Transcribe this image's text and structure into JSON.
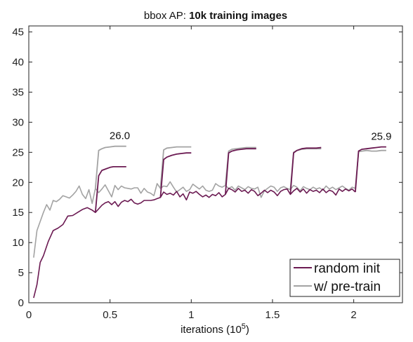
{
  "chart_data": {
    "type": "line",
    "title_prefix": "bbox AP: ",
    "title_bold": "10k training images",
    "xlabel": "iterations (10",
    "xlabel_exp": "5",
    "xlabel_suffix": ")",
    "xlim": [
      0,
      2.3
    ],
    "ylim": [
      0,
      46
    ],
    "xticks": [
      0,
      0.5,
      1,
      1.5,
      2
    ],
    "xtick_labels": [
      "0",
      "0.5",
      "1",
      "1.5",
      "2"
    ],
    "yticks": [
      0,
      5,
      10,
      15,
      20,
      25,
      30,
      35,
      40,
      45
    ],
    "ytick_labels": [
      "0",
      "5",
      "10",
      "15",
      "20",
      "25",
      "30",
      "35",
      "40",
      "45"
    ],
    "grid": false,
    "legend_position": "bottom-right",
    "series": [
      {
        "name": "random init",
        "color": "#6b1a52",
        "main": {
          "x": [
            0.03,
            0.05,
            0.07,
            0.09,
            0.12,
            0.15,
            0.18,
            0.21,
            0.24,
            0.27,
            0.3,
            0.33,
            0.36,
            0.39,
            0.41,
            0.43,
            0.45,
            0.47,
            0.49,
            0.51,
            0.53,
            0.55,
            0.57,
            0.59,
            0.61,
            0.63,
            0.65,
            0.67,
            0.69,
            0.71,
            0.73,
            0.75,
            0.77,
            0.79,
            0.81,
            0.83,
            0.85,
            0.87,
            0.89,
            0.91,
            0.93,
            0.95,
            0.97,
            0.99,
            1.01,
            1.03,
            1.05,
            1.07,
            1.09,
            1.11,
            1.13,
            1.15,
            1.17,
            1.19,
            1.21,
            1.23,
            1.25,
            1.27,
            1.29,
            1.31,
            1.33,
            1.35,
            1.37,
            1.39,
            1.41,
            1.43,
            1.45,
            1.47,
            1.49,
            1.51,
            1.53,
            1.55,
            1.57,
            1.59,
            1.61,
            1.63,
            1.65,
            1.67,
            1.69,
            1.71,
            1.73,
            1.75,
            1.77,
            1.79,
            1.81,
            1.83,
            1.85,
            1.87,
            1.89,
            1.91,
            1.93,
            1.95,
            1.97,
            1.99,
            2.01
          ],
          "y": [
            0.8,
            3.0,
            6.7,
            7.8,
            10.2,
            12.0,
            12.4,
            13.0,
            14.4,
            14.5,
            15.0,
            15.5,
            15.8,
            15.4,
            15.0,
            15.6,
            16.2,
            16.6,
            16.8,
            16.3,
            16.8,
            16.0,
            16.7,
            17.0,
            16.8,
            17.2,
            16.6,
            16.4,
            16.6,
            17.0,
            17.0,
            17.0,
            17.1,
            17.3,
            17.5,
            18.4,
            18.0,
            18.2,
            17.9,
            18.5,
            17.6,
            18.1,
            17.1,
            18.4,
            18.2,
            18.5,
            18.0,
            17.6,
            17.9,
            17.5,
            18.0,
            17.8,
            18.3,
            17.6,
            18.0,
            19.0,
            18.8,
            18.4,
            19.0,
            18.5,
            18.7,
            18.2,
            18.8,
            18.5,
            17.8,
            18.2,
            18.7,
            18.3,
            18.7,
            18.4,
            17.8,
            18.5,
            18.8,
            18.9,
            18.0,
            18.6,
            19.0,
            18.4,
            18.9,
            18.2,
            18.8,
            18.5,
            18.7,
            18.3,
            18.9,
            18.3,
            18.7,
            18.5,
            17.9,
            18.9,
            18.5,
            18.9,
            18.6,
            18.9,
            18.4
          ]
        },
        "branches": [
          {
            "x": [
              0.41,
              0.43,
              0.45,
              0.47,
              0.5,
              0.52,
              0.55,
              0.58,
              0.6
            ],
            "y": [
              15.0,
              21.1,
              22.0,
              22.2,
              22.5,
              22.6,
              22.6,
              22.6,
              22.6
            ]
          },
          {
            "x": [
              0.81,
              0.83,
              0.85,
              0.88,
              0.91,
              0.94,
              0.97,
              1.0
            ],
            "y": [
              17.5,
              23.8,
              24.2,
              24.5,
              24.7,
              24.8,
              24.9,
              24.9
            ]
          },
          {
            "x": [
              1.21,
              1.23,
              1.25,
              1.28,
              1.31,
              1.34,
              1.37,
              1.4
            ],
            "y": [
              18.0,
              24.9,
              25.2,
              25.4,
              25.5,
              25.6,
              25.6,
              25.6
            ]
          },
          {
            "x": [
              1.61,
              1.63,
              1.65,
              1.68,
              1.71,
              1.74,
              1.77,
              1.8
            ],
            "y": [
              18.0,
              24.9,
              25.3,
              25.6,
              25.7,
              25.7,
              25.7,
              25.8
            ]
          },
          {
            "x": [
              2.01,
              2.03,
              2.05,
              2.08,
              2.11,
              2.14,
              2.17,
              2.2
            ],
            "y": [
              18.4,
              25.2,
              25.5,
              25.6,
              25.7,
              25.8,
              25.9,
              25.9
            ]
          }
        ]
      },
      {
        "name": "w/ pre-train",
        "color": "#a3a3a3",
        "main": {
          "x": [
            0.03,
            0.05,
            0.07,
            0.09,
            0.11,
            0.13,
            0.15,
            0.17,
            0.19,
            0.21,
            0.23,
            0.25,
            0.27,
            0.29,
            0.31,
            0.33,
            0.35,
            0.37,
            0.39,
            0.41,
            0.43,
            0.45,
            0.47,
            0.49,
            0.51,
            0.53,
            0.55,
            0.57,
            0.59,
            0.61,
            0.63,
            0.65,
            0.67,
            0.69,
            0.71,
            0.73,
            0.75,
            0.77,
            0.79,
            0.81,
            0.83,
            0.85,
            0.87,
            0.89,
            0.91,
            0.93,
            0.95,
            0.97,
            0.99,
            1.01,
            1.03,
            1.05,
            1.07,
            1.09,
            1.11,
            1.13,
            1.15,
            1.17,
            1.19,
            1.21,
            1.23,
            1.25,
            1.27,
            1.29,
            1.31,
            1.33,
            1.35,
            1.37,
            1.39,
            1.41,
            1.43,
            1.45,
            1.47,
            1.49,
            1.51,
            1.53,
            1.55,
            1.57,
            1.59,
            1.61,
            1.63,
            1.65,
            1.67,
            1.69,
            1.71,
            1.73,
            1.75,
            1.77,
            1.79,
            1.81,
            1.83,
            1.85,
            1.87,
            1.89,
            1.91,
            1.93,
            1.95,
            1.97,
            1.99,
            2.01
          ],
          "y": [
            7.5,
            12.0,
            13.5,
            15.0,
            16.3,
            15.4,
            17.0,
            16.8,
            17.2,
            17.8,
            17.6,
            17.4,
            17.9,
            18.5,
            19.4,
            18.0,
            17.3,
            18.8,
            16.5,
            19.0,
            18.3,
            18.9,
            19.6,
            18.6,
            17.6,
            19.5,
            18.8,
            19.4,
            19.1,
            19.0,
            18.9,
            19.1,
            19.1,
            18.2,
            19.0,
            18.4,
            18.2,
            17.8,
            19.8,
            19.0,
            19.4,
            19.3,
            20.1,
            19.2,
            18.4,
            18.8,
            19.2,
            18.5,
            18.8,
            19.7,
            19.3,
            18.9,
            19.4,
            18.7,
            18.5,
            18.7,
            19.8,
            19.4,
            19.2,
            19.5,
            19.0,
            19.3,
            18.7,
            19.4,
            19.1,
            18.8,
            19.3,
            19.0,
            18.9,
            19.2,
            17.5,
            18.6,
            19.0,
            19.4,
            19.2,
            18.5,
            19.1,
            19.3,
            19.0,
            18.8,
            19.5,
            19.2,
            18.6,
            19.3,
            19.0,
            18.8,
            19.2,
            18.9,
            19.1,
            18.7,
            19.4,
            18.9,
            19.2,
            18.8,
            19.1,
            19.4,
            19.0,
            18.7,
            19.2,
            19.0
          ]
        },
        "branches": [
          {
            "x": [
              0.41,
              0.43,
              0.45,
              0.47,
              0.5,
              0.53,
              0.56,
              0.6
            ],
            "y": [
              19.0,
              25.3,
              25.6,
              25.8,
              25.9,
              26.0,
              26.0,
              26.0
            ]
          },
          {
            "x": [
              0.81,
              0.83,
              0.85,
              0.88,
              0.91,
              0.94,
              0.97,
              1.0
            ],
            "y": [
              19.0,
              25.4,
              25.7,
              25.8,
              25.9,
              25.9,
              25.9,
              25.9
            ]
          },
          {
            "x": [
              1.21,
              1.23,
              1.25,
              1.28,
              1.31,
              1.34,
              1.37,
              1.4
            ],
            "y": [
              19.5,
              25.2,
              25.5,
              25.6,
              25.7,
              25.8,
              25.8,
              25.8
            ]
          },
          {
            "x": [
              1.61,
              1.63,
              1.65,
              1.68,
              1.71,
              1.74,
              1.77,
              1.8
            ],
            "y": [
              18.8,
              25.0,
              25.3,
              25.5,
              25.6,
              25.6,
              25.6,
              25.6
            ]
          },
          {
            "x": [
              2.01,
              2.03,
              2.05,
              2.08,
              2.11,
              2.14,
              2.17,
              2.2
            ],
            "y": [
              19.0,
              25.1,
              25.2,
              25.3,
              25.2,
              25.2,
              25.3,
              25.3
            ]
          }
        ]
      }
    ],
    "annotations": [
      {
        "text": "26.0",
        "x": 0.56,
        "y": 26.0
      },
      {
        "text": "25.9",
        "x": 2.17,
        "y": 25.9
      }
    ]
  }
}
